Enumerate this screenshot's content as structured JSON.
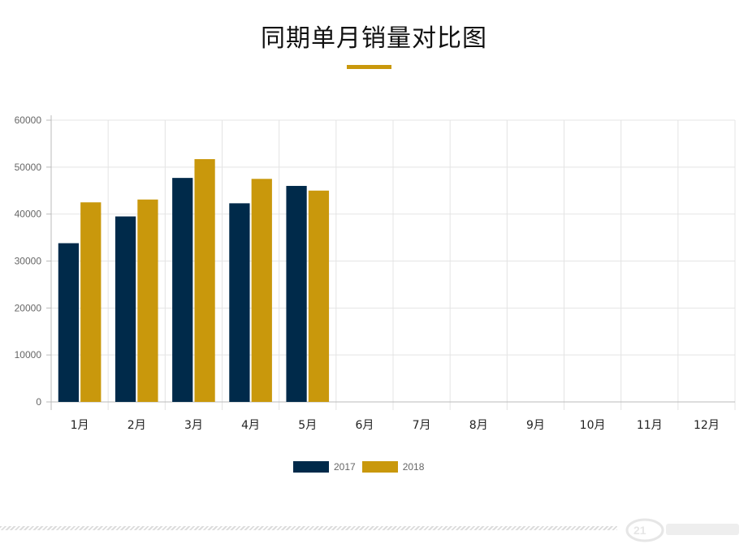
{
  "page": {
    "title": "同期单月销量对比图"
  },
  "chart_data": {
    "type": "bar",
    "categories": [
      "1月",
      "2月",
      "3月",
      "4月",
      "5月",
      "6月",
      "7月",
      "8月",
      "9月",
      "10月",
      "11月",
      "12月"
    ],
    "series": [
      {
        "name": "2017",
        "color": "#002a4a",
        "values": [
          33800,
          39500,
          47700,
          42300,
          46000,
          null,
          null,
          null,
          null,
          null,
          null,
          null
        ]
      },
      {
        "name": "2018",
        "color": "#c9980c",
        "values": [
          42500,
          43100,
          51700,
          47500,
          45000,
          null,
          null,
          null,
          null,
          null,
          null,
          null
        ]
      }
    ],
    "y_ticks": [
      "0",
      "10000",
      "20000",
      "30000",
      "40000",
      "50000",
      "60000"
    ],
    "ylim": [
      0,
      60000
    ],
    "grid": true,
    "legend_position": "bottom"
  },
  "colors": {
    "accent": "#c9980c",
    "navy": "#002a4a"
  }
}
